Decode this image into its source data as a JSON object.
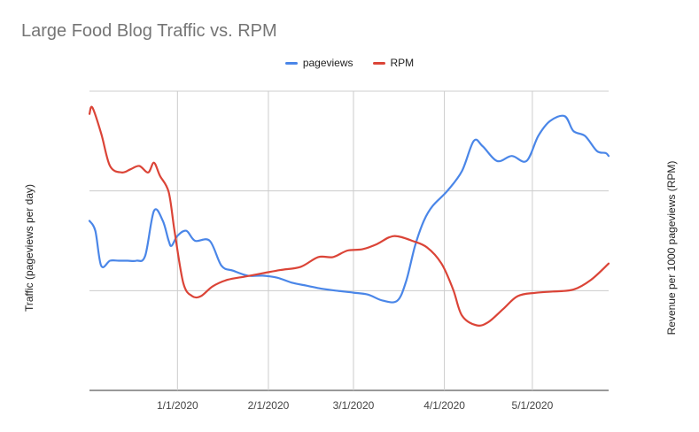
{
  "chart_data": {
    "type": "line",
    "title": "Large Food Blog Traffic vs. RPM",
    "subtitle": "",
    "xlabel": "",
    "ylabel_left": "Traffic (pageviews per day)",
    "ylabel_right": "Revenue per 1000 pageviews (RPM)",
    "x_ticks": [
      "1/1/2020",
      "2/1/2020",
      "3/1/2020",
      "4/1/2020",
      "5/1/2020"
    ],
    "x_range": [
      "2019-12-02",
      "2020-05-27"
    ],
    "grid": true,
    "legend_position": "top-center",
    "y_scale_note": "no y tick values shown",
    "series": [
      {
        "name": "pageviews",
        "color": "#4a86e8",
        "axis": "left",
        "x": [
          "2019-12-02",
          "2019-12-04",
          "2019-12-06",
          "2019-12-09",
          "2019-12-12",
          "2019-12-15",
          "2019-12-18",
          "2019-12-21",
          "2019-12-24",
          "2019-12-27",
          "2019-12-29",
          "2019-12-30",
          "2020-01-01",
          "2020-01-04",
          "2020-01-07",
          "2020-01-12",
          "2020-01-16",
          "2020-01-20",
          "2020-01-25",
          "2020-01-30",
          "2020-02-04",
          "2020-02-09",
          "2020-02-14",
          "2020-02-19",
          "2020-02-24",
          "2020-03-01",
          "2020-03-06",
          "2020-03-11",
          "2020-03-16",
          "2020-03-19",
          "2020-03-22",
          "2020-03-25",
          "2020-03-28",
          "2020-04-02",
          "2020-04-07",
          "2020-04-11",
          "2020-04-14",
          "2020-04-19",
          "2020-04-24",
          "2020-04-29",
          "2020-05-03",
          "2020-05-07",
          "2020-05-12",
          "2020-05-15",
          "2020-05-19",
          "2020-05-23",
          "2020-05-26",
          "2020-05-27"
        ],
        "values": [
          2.2,
          2.1,
          1.75,
          1.8,
          1.8,
          1.8,
          1.8,
          1.85,
          2.3,
          2.2,
          2.0,
          1.95,
          2.05,
          2.1,
          2.0,
          2.0,
          1.75,
          1.7,
          1.65,
          1.65,
          1.63,
          1.58,
          1.55,
          1.52,
          1.5,
          1.48,
          1.46,
          1.4,
          1.4,
          1.6,
          1.95,
          2.2,
          2.35,
          2.5,
          2.7,
          3.0,
          2.95,
          2.8,
          2.85,
          2.8,
          3.05,
          3.2,
          3.25,
          3.1,
          3.05,
          2.9,
          2.88,
          2.85
        ]
      },
      {
        "name": "RPM",
        "color": "#db4437",
        "axis": "right",
        "x": [
          "2019-12-02",
          "2019-12-03",
          "2019-12-06",
          "2019-12-09",
          "2019-12-13",
          "2019-12-16",
          "2019-12-19",
          "2019-12-22",
          "2019-12-24",
          "2019-12-26",
          "2019-12-29",
          "2019-12-31",
          "2020-01-03",
          "2020-01-06",
          "2020-01-09",
          "2020-01-13",
          "2020-01-18",
          "2020-01-24",
          "2020-01-30",
          "2020-02-05",
          "2020-02-12",
          "2020-02-18",
          "2020-02-23",
          "2020-02-28",
          "2020-03-04",
          "2020-03-09",
          "2020-03-13",
          "2020-03-16",
          "2020-03-21",
          "2020-03-26",
          "2020-03-31",
          "2020-04-04",
          "2020-04-07",
          "2020-04-12",
          "2020-04-16",
          "2020-04-21",
          "2020-04-26",
          "2020-05-02",
          "2020-05-08",
          "2020-05-15",
          "2020-05-21",
          "2020-05-27"
        ],
        "values": [
          3.3,
          3.4,
          3.0,
          2.5,
          2.4,
          2.45,
          2.5,
          2.4,
          2.55,
          2.35,
          2.1,
          1.5,
          0.7,
          0.5,
          0.5,
          0.65,
          0.75,
          0.8,
          0.85,
          0.9,
          0.95,
          1.1,
          1.1,
          1.2,
          1.22,
          1.3,
          1.4,
          1.42,
          1.35,
          1.25,
          1.0,
          0.6,
          0.2,
          0.05,
          0.1,
          0.3,
          0.5,
          0.55,
          0.57,
          0.6,
          0.75,
          1.0
        ]
      }
    ]
  }
}
